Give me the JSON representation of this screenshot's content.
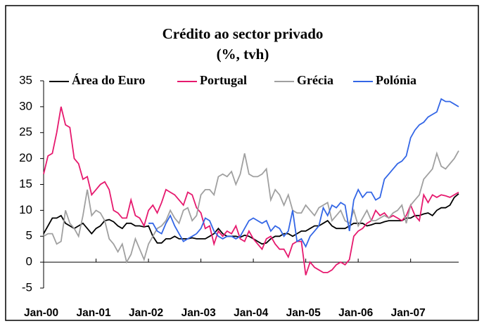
{
  "chart_data": {
    "type": "line",
    "title": "Crédito ao sector privado",
    "subtitle": "(%, tvh)",
    "categories": [
      "Jan-00",
      null,
      null,
      null,
      null,
      null,
      null,
      null,
      null,
      null,
      null,
      null,
      "Jan-01",
      null,
      null,
      null,
      null,
      null,
      null,
      null,
      null,
      null,
      null,
      null,
      "Jan-02",
      null,
      null,
      null,
      null,
      null,
      null,
      null,
      null,
      null,
      null,
      null,
      "Jan-03",
      null,
      null,
      null,
      null,
      null,
      null,
      null,
      null,
      null,
      null,
      null,
      "Jan-04",
      null,
      null,
      null,
      null,
      null,
      null,
      null,
      null,
      null,
      null,
      null,
      "Jan-05",
      null,
      null,
      null,
      null,
      null,
      null,
      null,
      null,
      null,
      null,
      null,
      "Jan-06",
      null,
      null,
      null,
      null,
      null,
      null,
      null,
      null,
      null,
      null,
      null,
      "Jan-07",
      null,
      null,
      null,
      null,
      null,
      null,
      null,
      null,
      null,
      null,
      null
    ],
    "series": [
      {
        "name": "Área do Euro",
        "color": "#000000",
        "values": [
          5.5,
          7,
          8.5,
          8.5,
          9,
          7.5,
          7,
          6.5,
          7,
          7.5,
          6.5,
          5.5,
          6.5,
          7,
          8,
          8.2,
          7.8,
          7,
          6.5,
          7.5,
          7.5,
          7,
          7,
          6.8,
          7,
          5,
          3.7,
          3.7,
          4.5,
          4.5,
          5,
          4.5,
          4.5,
          4.5,
          4.7,
          4.5,
          4.5,
          4.5,
          5,
          5.5,
          6.5,
          5.5,
          5,
          5,
          5,
          4.8,
          5.2,
          5,
          4.5,
          4,
          3.5,
          3.7,
          4.5,
          5,
          5,
          5.5,
          5.5,
          5,
          5.5,
          6,
          6,
          6.5,
          7,
          7,
          7.5,
          8,
          7,
          6.5,
          6.5,
          6.5,
          7,
          7.5,
          7.5,
          7.5,
          7,
          7.2,
          7.5,
          7.5,
          7.8,
          8,
          8,
          8,
          8,
          8.5,
          8.5,
          9,
          9,
          9.3,
          9.5,
          9,
          10,
          10.5,
          10.5,
          11,
          12.5,
          13.2
        ]
      },
      {
        "name": "Portugal",
        "color": "#e6196e",
        "values": [
          17,
          20.5,
          21,
          25,
          30,
          26.5,
          26,
          20,
          19,
          16,
          16.5,
          13,
          14,
          15,
          15.5,
          14,
          10,
          9.5,
          8.5,
          8.5,
          12,
          9,
          8.5,
          7,
          10,
          11,
          9.5,
          11.5,
          14,
          13.5,
          13,
          12,
          11,
          13.5,
          13,
          10.5,
          9.5,
          6.5,
          7,
          3.5,
          6,
          5,
          6,
          5.5,
          7,
          4.5,
          4,
          6,
          4.5,
          3.5,
          2.5,
          4.5,
          5,
          3.5,
          2.5,
          2.5,
          1,
          3.5,
          4,
          4,
          -2.5,
          0,
          -1,
          -1.5,
          -2,
          -2,
          -1.5,
          -0.5,
          0,
          -0.5,
          0.5,
          5,
          6,
          6.5,
          7.5,
          8,
          10,
          9,
          9.5,
          8.5,
          9,
          8.5,
          8,
          9,
          11,
          9,
          8,
          13,
          11.5,
          13,
          12.5,
          13,
          12.8,
          12.5,
          13,
          13.5
        ]
      },
      {
        "name": "Grécia",
        "color": "#a0a0a0",
        "values": [
          5,
          5.5,
          5.5,
          3.5,
          4,
          10,
          7.5,
          6.5,
          5,
          9,
          14,
          9,
          10,
          9.5,
          8,
          4.5,
          3.5,
          2,
          3.5,
          0,
          1.5,
          4.5,
          2.5,
          0.5,
          3.5,
          5,
          6.5,
          7,
          8,
          10,
          8.5,
          7.5,
          10,
          10.5,
          8,
          9,
          13,
          14,
          14,
          13,
          16.5,
          17,
          16.5,
          17.5,
          15,
          17,
          21,
          17,
          16.5,
          16.5,
          17,
          18,
          12,
          14,
          13,
          11,
          13,
          10,
          9.5,
          9.5,
          11,
          10,
          9,
          10.5,
          11,
          11.5,
          8,
          9,
          10,
          8,
          7.5,
          10,
          7,
          8.5,
          10,
          8,
          8,
          8.5,
          9,
          8.5,
          9.5,
          10,
          11,
          7.5,
          11,
          12,
          13,
          16,
          17,
          18,
          21,
          18.5,
          18,
          19,
          20,
          21.5
        ]
      },
      {
        "name": "Polónia",
        "color": "#3366e6",
        "values": [
          null,
          null,
          null,
          null,
          null,
          null,
          null,
          null,
          null,
          null,
          null,
          null,
          null,
          null,
          null,
          null,
          null,
          null,
          null,
          null,
          null,
          null,
          null,
          null,
          7.5,
          7.5,
          6,
          5.5,
          7.5,
          9,
          7,
          5.5,
          4,
          4.5,
          5,
          5.5,
          6.5,
          8.5,
          8,
          6,
          5,
          4.5,
          5,
          5,
          4.5,
          5,
          6.5,
          8,
          8.5,
          8,
          7.5,
          8,
          6,
          7,
          6.5,
          5,
          6,
          10,
          4,
          4.5,
          3,
          5,
          6,
          7,
          10.5,
          9,
          11,
          10.5,
          11.5,
          11,
          6,
          12,
          14,
          12.5,
          13.5,
          13.5,
          12,
          12.5,
          16,
          17,
          18,
          19,
          19.5,
          20.5,
          24,
          25.5,
          26.5,
          27,
          28,
          28.5,
          29,
          31.5,
          31,
          31,
          30.5,
          30
        ]
      }
    ],
    "ylim": [
      -5,
      35
    ],
    "yticks": [
      -5,
      0,
      5,
      10,
      15,
      20,
      25,
      30,
      35
    ],
    "legend": "top",
    "grid": false
  }
}
